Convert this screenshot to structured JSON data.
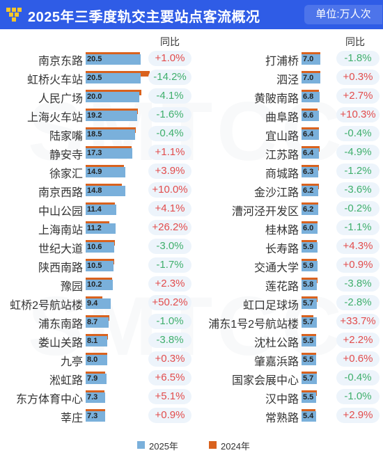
{
  "header": {
    "title": "2025年三季度轨交主要站点客流概况",
    "unit": "单位:万人次"
  },
  "column_header": "同比",
  "legend": [
    {
      "label": "2025年",
      "color": "#7AB0DB"
    },
    {
      "label": "2024年",
      "color": "#D9621E"
    }
  ],
  "watermark": "SMTCC",
  "colors": {
    "header_bg": "#2F5CE6",
    "increase": "#E24C4C",
    "decrease": "#3FAF6C",
    "pill_bg": "#EDF4FB"
  },
  "chart_data": [
    {
      "type": "bar",
      "title": "2025年三季度轨交主要站点客流概况",
      "unit": "万人次",
      "categories": [
        "南京东路",
        "虹桥火车站",
        "人民广场",
        "上海火车站",
        "陆家嘴",
        "静安寺",
        "徐家汇",
        "南京西路",
        "中山公园",
        "上海南站",
        "世纪大道",
        "陕西南路",
        "豫园",
        "虹桥2号航站楼",
        "浦东南路",
        "娄山关路",
        "九亭",
        "淞虹路",
        "东方体育中心",
        "莘庄"
      ],
      "series": [
        {
          "name": "2025年",
          "values": [
            20.5,
            20.5,
            20.0,
            19.2,
            18.5,
            17.3,
            14.9,
            14.8,
            11.4,
            11.2,
            10.6,
            10.5,
            10.2,
            9.4,
            8.7,
            8.1,
            8.0,
            7.9,
            7.3,
            7.3
          ]
        },
        {
          "name": "2024年",
          "values": [
            20.3,
            23.9,
            20.8,
            19.5,
            18.6,
            17.1,
            14.3,
            13.5,
            11.0,
            8.9,
            10.9,
            10.7,
            10.0,
            6.3,
            8.8,
            8.4,
            8.0,
            7.4,
            6.9,
            7.2
          ]
        }
      ],
      "yoy": [
        "+1.0%",
        "-14.2%",
        "-4.1%",
        "-1.6%",
        "-0.4%",
        "+1.1%",
        "+3.9%",
        "+10.0%",
        "+4.1%",
        "+26.2%",
        "-3.0%",
        "-1.7%",
        "+2.3%",
        "+50.2%",
        "-1.0%",
        "-3.8%",
        "+0.3%",
        "+6.5%",
        "+5.1%",
        "+0.9%"
      ],
      "yoy_values": [
        1.0,
        -14.2,
        -4.1,
        -1.6,
        -0.4,
        1.1,
        3.9,
        10.0,
        4.1,
        26.2,
        -3.0,
        -1.7,
        2.3,
        50.2,
        -1.0,
        -3.8,
        0.3,
        6.5,
        5.1,
        0.9
      ],
      "xlim": [
        0,
        23.9
      ]
    },
    {
      "type": "bar",
      "title": "2025年三季度轨交主要站点客流概况",
      "unit": "万人次",
      "categories": [
        "打浦桥",
        "泗泾",
        "黄陂南路",
        "曲阜路",
        "宜山路",
        "江苏路",
        "商城路",
        "金沙江路",
        "漕河泾开发区",
        "桂林路",
        "长寿路",
        "交通大学",
        "莲花路",
        "虹口足球场",
        "浦东1号2号航站楼",
        "沈杜公路",
        "肇嘉浜路",
        "国家会展中心",
        "汉中路",
        "常熟路"
      ],
      "series": [
        {
          "name": "2025年",
          "values": [
            7.0,
            7.0,
            6.8,
            6.6,
            6.4,
            6.4,
            6.3,
            6.2,
            6.2,
            6.0,
            5.9,
            5.9,
            5.8,
            5.7,
            5.7,
            5.5,
            5.5,
            5.7,
            5.5,
            5.4
          ]
        },
        {
          "name": "2024年",
          "values": [
            7.1,
            7.0,
            6.6,
            6.0,
            6.4,
            6.7,
            6.4,
            6.4,
            6.2,
            6.1,
            5.7,
            5.8,
            6.0,
            5.9,
            4.3,
            5.4,
            5.5,
            5.7,
            5.6,
            5.2
          ]
        }
      ],
      "yoy": [
        "-1.8%",
        "+0.3%",
        "+2.7%",
        "+10.3%",
        "-0.4%",
        "-4.9%",
        "-1.2%",
        "-3.6%",
        "-0.2%",
        "-1.1%",
        "+4.3%",
        "+0.9%",
        "-3.8%",
        "-2.8%",
        "+33.7%",
        "+2.2%",
        "+0.6%",
        "-0.4%",
        "-1.0%",
        "+2.9%"
      ],
      "yoy_values": [
        -1.8,
        0.3,
        2.7,
        10.3,
        -0.4,
        -4.9,
        -1.2,
        -3.6,
        -0.2,
        -1.1,
        4.3,
        0.9,
        -3.8,
        -2.8,
        33.7,
        2.2,
        0.6,
        -0.4,
        -1.0,
        2.9
      ],
      "xlim": [
        0,
        23.9
      ]
    }
  ]
}
